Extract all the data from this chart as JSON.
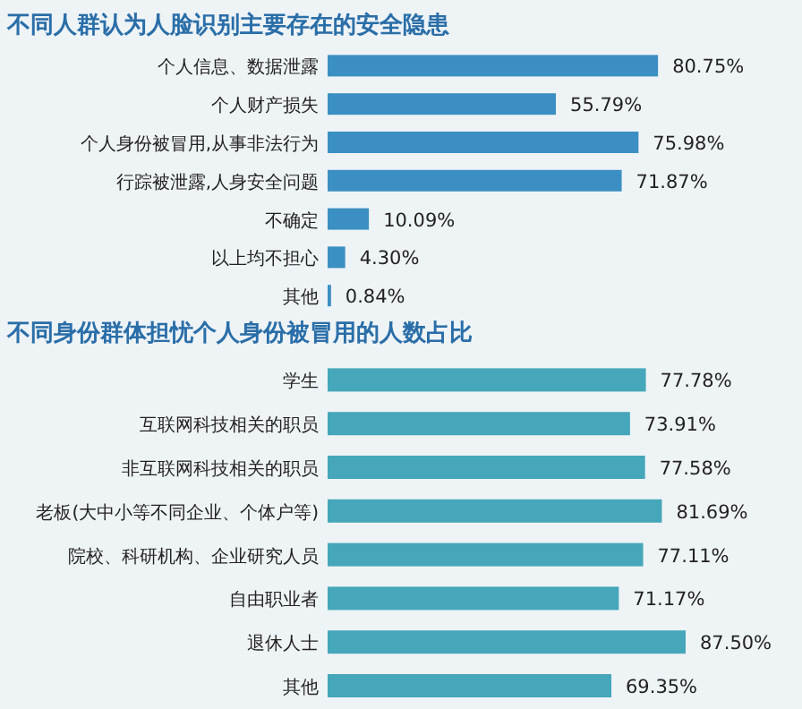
{
  "chart_data": [
    {
      "type": "bar",
      "orientation": "horizontal",
      "title": "不同人群认为人脸识别主要存在的安全隐患",
      "categories": [
        "个人信息、数据泄露",
        "个人财产损失",
        "个人身份被冒用,从事非法行为",
        "行踪被泄露,人身安全问题",
        "不确定",
        "以上均不担心",
        "其他"
      ],
      "values": [
        80.75,
        55.79,
        75.98,
        71.87,
        10.09,
        4.3,
        0.84
      ],
      "value_labels": [
        "80.75%",
        "55.79%",
        "75.98%",
        "71.87%",
        "10.09%",
        "4.30%",
        "0.84%"
      ],
      "color": "#3b8fc2"
    },
    {
      "type": "bar",
      "orientation": "horizontal",
      "title": "不同身份群体担忧个人身份被冒用的人数占比",
      "categories": [
        "学生",
        "互联网科技相关的职员",
        "非互联网科技相关的职员",
        "老板(大中小等不同企业、个体户等)",
        "院校、科研机构、企业研究人员",
        "自由职业者",
        "退休人士",
        "其他"
      ],
      "values": [
        77.78,
        73.91,
        77.58,
        81.69,
        77.11,
        71.17,
        87.5,
        69.35
      ],
      "value_labels": [
        "77.78%",
        "73.91%",
        "77.58%",
        "81.69%",
        "77.11%",
        "71.17%",
        "87.50%",
        "69.35%"
      ],
      "color": "#45a7b9"
    }
  ]
}
